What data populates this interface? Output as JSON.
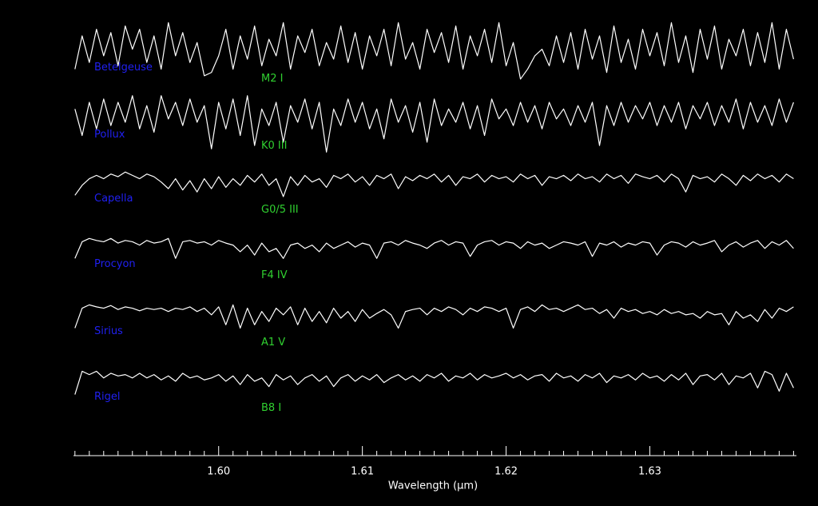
{
  "chart_data": {
    "type": "line",
    "x_label": "Wavelength (μm)",
    "xlim": [
      1.5899,
      1.6402
    ],
    "ylim": [
      0,
      6.5
    ],
    "xticks": [
      {
        "value": 1.6,
        "label": "1.60"
      },
      {
        "value": 1.61,
        "label": "1.61"
      },
      {
        "value": 1.62,
        "label": "1.62"
      },
      {
        "value": 1.63,
        "label": "1.63"
      }
    ],
    "xminorticks": [
      1.59,
      1.591,
      1.592,
      1.593,
      1.594,
      1.595,
      1.596,
      1.597,
      1.598,
      1.599,
      1.601,
      1.602,
      1.603,
      1.604,
      1.605,
      1.606,
      1.607,
      1.608,
      1.609,
      1.611,
      1.612,
      1.613,
      1.614,
      1.615,
      1.616,
      1.617,
      1.618,
      1.619,
      1.621,
      1.622,
      1.623,
      1.624,
      1.625,
      1.626,
      1.627,
      1.628,
      1.629,
      1.631,
      1.632,
      1.633,
      1.634,
      1.635,
      1.636,
      1.637,
      1.638,
      1.639,
      1.64
    ],
    "name_color": "#2020f0",
    "type_color": "#30d030",
    "axis_color": "#ffffff",
    "x": [
      1.59,
      1.5905,
      1.591,
      1.5915,
      1.592,
      1.5925,
      1.593,
      1.5935,
      1.594,
      1.5945,
      1.595,
      1.5955,
      1.596,
      1.5965,
      1.597,
      1.5975,
      1.598,
      1.5985,
      1.599,
      1.5995,
      1.6,
      1.6005,
      1.601,
      1.6015,
      1.602,
      1.6025,
      1.603,
      1.6035,
      1.604,
      1.6045,
      1.605,
      1.6055,
      1.606,
      1.6065,
      1.607,
      1.6075,
      1.608,
      1.6085,
      1.609,
      1.6095,
      1.61,
      1.6105,
      1.611,
      1.6115,
      1.612,
      1.6125,
      1.613,
      1.6135,
      1.614,
      1.6145,
      1.615,
      1.6155,
      1.616,
      1.6165,
      1.617,
      1.6175,
      1.618,
      1.6185,
      1.619,
      1.6195,
      1.62,
      1.6205,
      1.621,
      1.6215,
      1.622,
      1.6225,
      1.623,
      1.6235,
      1.624,
      1.6245,
      1.625,
      1.6255,
      1.626,
      1.6265,
      1.627,
      1.6275,
      1.628,
      1.6285,
      1.629,
      1.6295,
      1.63,
      1.6305,
      1.631,
      1.6315,
      1.632,
      1.6325,
      1.633,
      1.6335,
      1.634,
      1.6345,
      1.635,
      1.6355,
      1.636,
      1.6365,
      1.637,
      1.6375,
      1.638,
      1.6385,
      1.639,
      1.6395,
      1.64
    ],
    "series": [
      {
        "name": "Betelgeuse",
        "spectral_type": "M2 I",
        "color": "#ffffff",
        "values": [
          5.7,
          6.2,
          5.8,
          6.3,
          5.9,
          6.25,
          5.75,
          6.35,
          6.0,
          6.3,
          5.8,
          6.2,
          5.7,
          6.4,
          5.9,
          6.25,
          5.8,
          6.1,
          5.6,
          5.65,
          5.9,
          6.3,
          5.7,
          6.2,
          5.85,
          6.35,
          5.75,
          6.15,
          5.9,
          6.4,
          5.7,
          6.2,
          5.95,
          6.3,
          5.75,
          6.1,
          5.85,
          6.35,
          5.8,
          6.25,
          5.7,
          6.2,
          5.9,
          6.3,
          5.75,
          6.4,
          5.85,
          6.1,
          5.7,
          6.3,
          5.95,
          6.25,
          5.8,
          6.35,
          5.7,
          6.2,
          5.9,
          6.3,
          5.8,
          6.4,
          5.75,
          6.1,
          5.55,
          5.7,
          5.9,
          6.0,
          5.75,
          6.2,
          5.8,
          6.25,
          5.7,
          6.3,
          5.85,
          6.2,
          5.65,
          6.35,
          5.8,
          6.15,
          5.7,
          6.3,
          5.9,
          6.25,
          5.75,
          6.4,
          5.8,
          6.2,
          5.65,
          6.3,
          5.85,
          6.35,
          5.7,
          6.15,
          5.9,
          6.3,
          5.75,
          6.25,
          5.8,
          6.4,
          5.7,
          6.3,
          5.85
        ]
      },
      {
        "name": "Pollux",
        "spectral_type": "K0 III",
        "color": "#ffffff",
        "values": [
          5.1,
          4.7,
          5.2,
          4.8,
          5.25,
          4.85,
          5.2,
          4.9,
          5.3,
          4.8,
          5.15,
          4.75,
          5.3,
          4.95,
          5.2,
          4.85,
          5.25,
          4.9,
          5.15,
          4.5,
          5.2,
          4.8,
          5.25,
          4.7,
          5.3,
          4.55,
          5.1,
          4.85,
          5.2,
          4.6,
          5.15,
          4.9,
          5.25,
          4.8,
          5.2,
          4.45,
          5.1,
          4.85,
          5.25,
          4.9,
          5.2,
          4.8,
          5.1,
          4.65,
          5.25,
          4.9,
          5.15,
          4.75,
          5.2,
          4.6,
          5.25,
          4.85,
          5.1,
          4.9,
          5.2,
          4.8,
          5.15,
          4.7,
          5.25,
          4.95,
          5.1,
          4.85,
          5.2,
          4.9,
          5.15,
          4.8,
          5.2,
          4.95,
          5.1,
          4.85,
          5.15,
          4.9,
          5.2,
          4.55,
          5.15,
          4.85,
          5.2,
          4.9,
          5.15,
          4.95,
          5.2,
          4.85,
          5.15,
          4.9,
          5.2,
          4.8,
          5.15,
          4.95,
          5.2,
          4.85,
          5.15,
          4.9,
          5.25,
          4.8,
          5.2,
          4.9,
          5.15,
          4.85,
          5.25,
          4.9,
          5.2
        ]
      },
      {
        "name": "Capella",
        "spectral_type": "G0/5 III",
        "color": "#ffffff",
        "values": [
          3.8,
          3.95,
          4.05,
          4.1,
          4.05,
          4.12,
          4.08,
          4.15,
          4.1,
          4.05,
          4.12,
          4.08,
          4.0,
          3.9,
          4.05,
          3.88,
          4.02,
          3.85,
          4.05,
          3.9,
          4.08,
          3.92,
          4.05,
          3.95,
          4.1,
          4.0,
          4.12,
          3.95,
          4.05,
          3.78,
          4.08,
          3.95,
          4.1,
          4.0,
          4.05,
          3.92,
          4.1,
          4.05,
          4.12,
          4.0,
          4.08,
          3.95,
          4.1,
          4.05,
          4.12,
          3.9,
          4.08,
          4.02,
          4.1,
          4.05,
          4.12,
          4.0,
          4.1,
          3.95,
          4.08,
          4.05,
          4.12,
          4.0,
          4.1,
          4.05,
          4.08,
          4.0,
          4.12,
          4.05,
          4.1,
          3.95,
          4.08,
          4.05,
          4.1,
          4.02,
          4.12,
          4.05,
          4.08,
          4.0,
          4.12,
          4.05,
          4.1,
          3.98,
          4.12,
          4.08,
          4.05,
          4.1,
          4.0,
          4.12,
          4.05,
          3.85,
          4.1,
          4.05,
          4.08,
          4.0,
          4.12,
          4.05,
          3.95,
          4.1,
          4.02,
          4.12,
          4.05,
          4.1,
          4.0,
          4.12,
          4.05
        ]
      },
      {
        "name": "Procyon",
        "spectral_type": "F4 IV",
        "color": "#ffffff",
        "values": [
          2.85,
          3.1,
          3.15,
          3.12,
          3.1,
          3.15,
          3.08,
          3.12,
          3.1,
          3.05,
          3.12,
          3.08,
          3.1,
          3.15,
          2.85,
          3.1,
          3.12,
          3.08,
          3.1,
          3.05,
          3.12,
          3.08,
          3.05,
          2.95,
          3.05,
          2.9,
          3.08,
          2.95,
          3.0,
          2.85,
          3.05,
          3.08,
          3.0,
          3.05,
          2.95,
          3.08,
          3.0,
          3.05,
          3.1,
          3.02,
          3.08,
          3.05,
          2.85,
          3.08,
          3.1,
          3.05,
          3.12,
          3.08,
          3.05,
          3.0,
          3.08,
          3.12,
          3.05,
          3.1,
          3.08,
          2.88,
          3.05,
          3.1,
          3.12,
          3.05,
          3.1,
          3.08,
          3.0,
          3.1,
          3.05,
          3.08,
          3.0,
          3.05,
          3.1,
          3.08,
          3.05,
          3.1,
          2.88,
          3.08,
          3.05,
          3.1,
          3.02,
          3.08,
          3.05,
          3.1,
          3.08,
          2.9,
          3.05,
          3.1,
          3.08,
          3.02,
          3.1,
          3.05,
          3.08,
          3.12,
          2.95,
          3.05,
          3.1,
          3.02,
          3.08,
          3.12,
          3.0,
          3.1,
          3.05,
          3.12,
          3.0
        ]
      },
      {
        "name": "Sirius",
        "spectral_type": "A1 V",
        "color": "#ffffff",
        "values": [
          1.8,
          2.1,
          2.15,
          2.12,
          2.1,
          2.14,
          2.08,
          2.12,
          2.1,
          2.06,
          2.1,
          2.08,
          2.1,
          2.05,
          2.1,
          2.08,
          2.12,
          2.05,
          2.1,
          2.0,
          2.12,
          1.85,
          2.15,
          1.8,
          2.1,
          1.85,
          2.05,
          1.9,
          2.1,
          2.0,
          2.12,
          1.85,
          2.1,
          1.9,
          2.05,
          1.88,
          2.1,
          1.95,
          2.05,
          1.9,
          2.08,
          1.95,
          2.02,
          2.08,
          2.0,
          1.8,
          2.05,
          2.08,
          2.1,
          2.0,
          2.1,
          2.05,
          2.12,
          2.08,
          2.0,
          2.1,
          2.05,
          2.12,
          2.1,
          2.05,
          2.1,
          1.8,
          2.08,
          2.12,
          2.05,
          2.15,
          2.08,
          2.1,
          2.05,
          2.1,
          2.15,
          2.08,
          2.1,
          2.02,
          2.08,
          1.95,
          2.1,
          2.05,
          2.08,
          2.02,
          2.05,
          2.0,
          2.08,
          2.02,
          2.05,
          2.0,
          2.02,
          1.95,
          2.05,
          2.0,
          2.02,
          1.85,
          2.05,
          1.95,
          2.0,
          1.9,
          2.08,
          1.95,
          2.1,
          2.05,
          2.12
        ]
      },
      {
        "name": "Rigel",
        "spectral_type": "B8 I",
        "color": "#ffffff",
        "values": [
          0.8,
          1.15,
          1.1,
          1.15,
          1.05,
          1.12,
          1.08,
          1.1,
          1.05,
          1.12,
          1.05,
          1.1,
          1.02,
          1.08,
          1.0,
          1.12,
          1.05,
          1.08,
          1.02,
          1.05,
          1.1,
          1.0,
          1.08,
          0.95,
          1.1,
          1.0,
          1.05,
          0.92,
          1.1,
          1.02,
          1.08,
          0.95,
          1.05,
          1.1,
          1.0,
          1.08,
          0.92,
          1.05,
          1.1,
          1.0,
          1.08,
          1.02,
          1.1,
          0.98,
          1.05,
          1.1,
          1.02,
          1.08,
          1.0,
          1.1,
          1.05,
          1.12,
          1.0,
          1.08,
          1.05,
          1.12,
          1.02,
          1.1,
          1.05,
          1.08,
          1.12,
          1.05,
          1.1,
          1.02,
          1.08,
          1.1,
          1.0,
          1.12,
          1.05,
          1.08,
          1.0,
          1.1,
          1.05,
          1.12,
          0.98,
          1.08,
          1.05,
          1.1,
          1.02,
          1.12,
          1.05,
          1.08,
          1.0,
          1.1,
          1.02,
          1.12,
          0.95,
          1.08,
          1.1,
          1.02,
          1.12,
          0.95,
          1.08,
          1.05,
          1.12,
          0.9,
          1.15,
          1.1,
          0.85,
          1.12,
          0.9
        ]
      }
    ]
  }
}
